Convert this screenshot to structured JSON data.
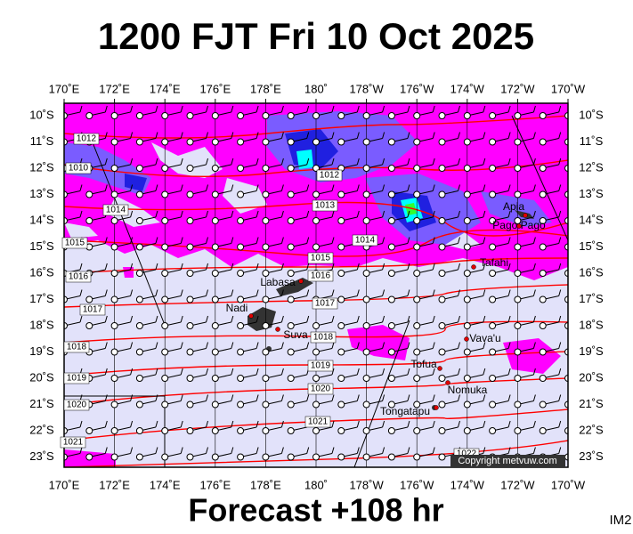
{
  "header": {
    "title": "1200 FJT Fri 10 Oct 2025"
  },
  "footer": {
    "forecast": "Forecast +108 hr",
    "code": "IM2"
  },
  "lon_labels": [
    "170˚E",
    "172˚E",
    "174˚E",
    "176˚E",
    "178˚E",
    "180˚",
    "178˚W",
    "176˚W",
    "174˚W",
    "172˚W",
    "170˚W"
  ],
  "lat_labels": [
    "10˚S",
    "11˚S",
    "12˚S",
    "13˚S",
    "14˚S",
    "15˚S",
    "16˚S",
    "17˚S",
    "18˚S",
    "19˚S",
    "20˚S",
    "21˚S",
    "22˚S",
    "23˚S"
  ],
  "isobar_labels": [
    "1012",
    "1010",
    "1014",
    "1015",
    "1016",
    "1017",
    "1018",
    "1019",
    "1020",
    "1021",
    "1012",
    "1013",
    "1014",
    "1015",
    "1016",
    "1017",
    "1018",
    "1019",
    "1020",
    "1021",
    "1022"
  ],
  "places": [
    "Apia",
    "Pago Pago",
    "Tafahi",
    "Labasa",
    "Nadi",
    "Suva",
    "Vava'u",
    "Tofua",
    "Nomuka",
    "Tongatapu"
  ],
  "copyright": "Copyright metvuw.com"
}
